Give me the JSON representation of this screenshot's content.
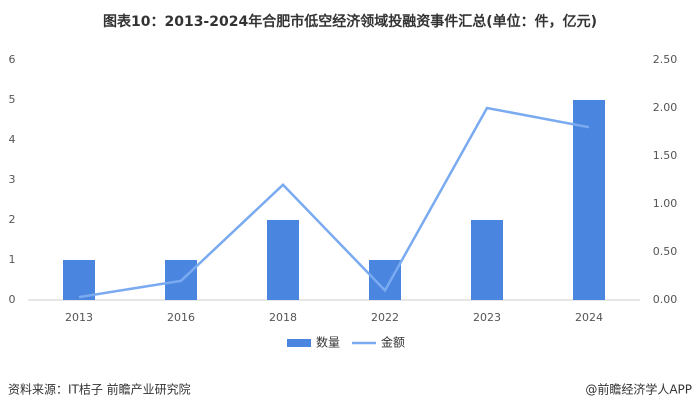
{
  "chart_data": {
    "type": "bar",
    "title": "图表10：2013-2024年合肥市低空经济领域投融资事件汇总(单位：件，亿元)",
    "categories": [
      "2013",
      "2016",
      "2018",
      "2022",
      "2023",
      "2024"
    ],
    "series": [
      {
        "name": "数量",
        "type": "bar",
        "color": "#4a86e0",
        "values": [
          1,
          1,
          2,
          1,
          2,
          5
        ]
      },
      {
        "name": "金额",
        "type": "line",
        "axis": "y2",
        "color": "#7aaaf0",
        "values": [
          0.03,
          0.2,
          1.2,
          0.1,
          2.0,
          1.8
        ]
      }
    ],
    "ylim": [
      0,
      6
    ],
    "yticks": [
      0,
      1,
      2,
      3,
      4,
      5,
      6
    ],
    "y2lim": [
      0,
      2.5
    ],
    "y2ticks": [
      {
        "value": 0,
        "label": "0.00"
      },
      {
        "value": 0.5,
        "label": "0.50"
      },
      {
        "value": 1,
        "label": "1.00"
      },
      {
        "value": 1.5,
        "label": "1.50"
      },
      {
        "value": 2,
        "label": "2.00"
      },
      {
        "value": 2.5,
        "label": "2.50"
      }
    ],
    "grid": false,
    "source": "资料来源：IT桔子 前瞻产业研究院",
    "brand": "@前瞻经济学人APP"
  }
}
